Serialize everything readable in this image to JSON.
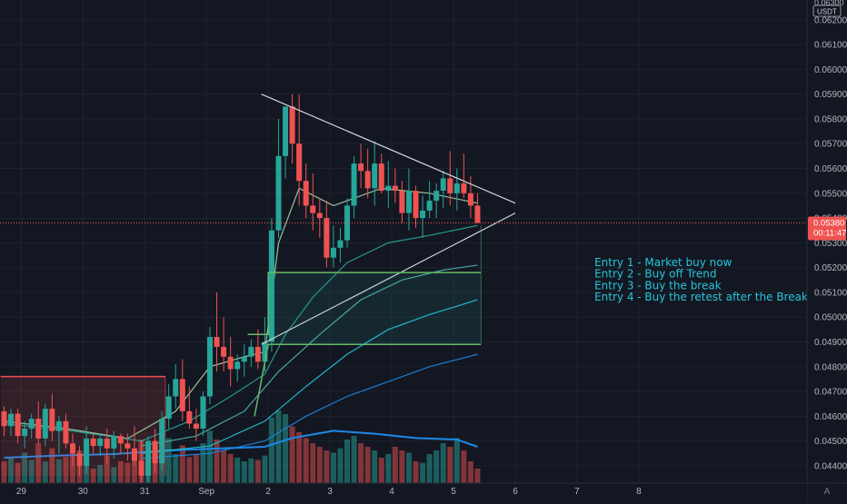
{
  "chart_data": {
    "type": "candlestick",
    "symbol": "",
    "quote_unit": "USDT",
    "price_scale": {
      "min": 0.0433,
      "max": 0.0628,
      "ticks": [
        0.062,
        0.061,
        0.06,
        0.059,
        0.058,
        0.057,
        0.056,
        0.055,
        0.054,
        0.053,
        0.052,
        0.051,
        0.05,
        0.049,
        0.048,
        0.047,
        0.046,
        0.045,
        0.044
      ],
      "tick_labels": [
        "0.06200",
        "0.06100",
        "0.06000",
        "0.05900",
        "0.05800",
        "0.05700",
        "0.05600",
        "0.05500",
        "0.05400",
        "0.05300",
        "0.05200",
        "0.05100",
        "0.05000",
        "0.04900",
        "0.04800",
        "0.04700",
        "0.04600",
        "0.04500",
        "0.04400"
      ],
      "top_partial_label": "0.06300"
    },
    "current_price": {
      "value": 0.0538,
      "label": "0.05380",
      "countdown": "00:11:47"
    },
    "time_axis": {
      "labels": [
        "29",
        "30",
        "31",
        "Sep",
        "2",
        "3",
        "4",
        "5",
        "6",
        "7",
        "8"
      ],
      "label_index": [
        2.5,
        11.5,
        20.5,
        29.5,
        38.5,
        47.5,
        56.5,
        65.5,
        74.5,
        83.5,
        92.5
      ]
    },
    "candles": [
      [
        0.0462,
        0.0464,
        0.0452,
        0.0456
      ],
      [
        0.0456,
        0.0463,
        0.0452,
        0.0461
      ],
      [
        0.0461,
        0.0463,
        0.0449,
        0.0452
      ],
      [
        0.0452,
        0.0458,
        0.0447,
        0.0455
      ],
      [
        0.0455,
        0.0461,
        0.0451,
        0.0459
      ],
      [
        0.0459,
        0.0466,
        0.0449,
        0.0451
      ],
      [
        0.0451,
        0.0465,
        0.0448,
        0.0463
      ],
      [
        0.0463,
        0.0469,
        0.045,
        0.0454
      ],
      [
        0.0454,
        0.046,
        0.0445,
        0.0458
      ],
      [
        0.0458,
        0.0461,
        0.0447,
        0.0449
      ],
      [
        0.0449,
        0.0453,
        0.044,
        0.0445
      ],
      [
        0.0445,
        0.0448,
        0.0436,
        0.044
      ],
      [
        0.044,
        0.0456,
        0.0437,
        0.0451
      ],
      [
        0.0451,
        0.0453,
        0.0445,
        0.0448
      ],
      [
        0.0448,
        0.0452,
        0.0444,
        0.0451
      ],
      [
        0.0451,
        0.0455,
        0.0441,
        0.0447
      ],
      [
        0.0447,
        0.0454,
        0.0443,
        0.0452
      ],
      [
        0.0452,
        0.0453,
        0.0445,
        0.0449
      ],
      [
        0.0449,
        0.0453,
        0.0442,
        0.0447
      ],
      [
        0.0447,
        0.0456,
        0.044,
        0.0442
      ],
      [
        0.0442,
        0.045,
        0.0432,
        0.0436
      ],
      [
        0.0436,
        0.0452,
        0.0433,
        0.045
      ],
      [
        0.045,
        0.0455,
        0.0437,
        0.0441
      ],
      [
        0.0441,
        0.0462,
        0.0438,
        0.0459
      ],
      [
        0.0459,
        0.0473,
        0.0455,
        0.0468
      ],
      [
        0.0468,
        0.0481,
        0.0463,
        0.0475
      ],
      [
        0.0475,
        0.0483,
        0.0458,
        0.0462
      ],
      [
        0.0462,
        0.0472,
        0.0455,
        0.0457
      ],
      [
        0.0457,
        0.0463,
        0.045,
        0.0455
      ],
      [
        0.0455,
        0.047,
        0.0452,
        0.0468
      ],
      [
        0.0468,
        0.0496,
        0.0465,
        0.0492
      ],
      [
        0.0492,
        0.051,
        0.0478,
        0.0488
      ],
      [
        0.0488,
        0.05,
        0.0478,
        0.0484
      ],
      [
        0.0484,
        0.0492,
        0.0472,
        0.0479
      ],
      [
        0.0479,
        0.0485,
        0.0474,
        0.0482
      ],
      [
        0.0482,
        0.0489,
        0.0476,
        0.0484
      ],
      [
        0.0484,
        0.0491,
        0.048,
        0.0488
      ],
      [
        0.0488,
        0.0495,
        0.0479,
        0.0482
      ],
      [
        0.0482,
        0.05,
        0.0478,
        0.049
      ],
      [
        0.049,
        0.054,
        0.0486,
        0.0535
      ],
      [
        0.0535,
        0.058,
        0.0532,
        0.0565
      ],
      [
        0.0565,
        0.0585,
        0.0556,
        0.0585
      ],
      [
        0.0585,
        0.059,
        0.0562,
        0.057
      ],
      [
        0.057,
        0.059,
        0.0545,
        0.0555
      ],
      [
        0.0555,
        0.0562,
        0.054,
        0.0545
      ],
      [
        0.0545,
        0.0558,
        0.0535,
        0.0542
      ],
      [
        0.0542,
        0.0548,
        0.0532,
        0.054
      ],
      [
        0.054,
        0.0547,
        0.052,
        0.0524
      ],
      [
        0.0524,
        0.0537,
        0.052,
        0.0528
      ],
      [
        0.0528,
        0.0536,
        0.0522,
        0.0531
      ],
      [
        0.0531,
        0.0548,
        0.0528,
        0.0545
      ],
      [
        0.0545,
        0.0565,
        0.054,
        0.0562
      ],
      [
        0.0562,
        0.057,
        0.0552,
        0.0559
      ],
      [
        0.0559,
        0.0568,
        0.0548,
        0.0552
      ],
      [
        0.0552,
        0.0571,
        0.0545,
        0.0562
      ],
      [
        0.0562,
        0.0566,
        0.055,
        0.0551
      ],
      [
        0.0551,
        0.0563,
        0.0544,
        0.0553
      ],
      [
        0.0553,
        0.056,
        0.0546,
        0.0551
      ],
      [
        0.0551,
        0.0555,
        0.0538,
        0.0542
      ],
      [
        0.0542,
        0.056,
        0.0535,
        0.0551
      ],
      [
        0.0551,
        0.0553,
        0.0536,
        0.054
      ],
      [
        0.054,
        0.0549,
        0.0532,
        0.0543
      ],
      [
        0.0543,
        0.0555,
        0.054,
        0.0547
      ],
      [
        0.0547,
        0.0554,
        0.054,
        0.0551
      ],
      [
        0.0551,
        0.0559,
        0.0544,
        0.0556
      ],
      [
        0.0556,
        0.0567,
        0.0545,
        0.055
      ],
      [
        0.055,
        0.056,
        0.0543,
        0.0554
      ],
      [
        0.0554,
        0.0566,
        0.0548,
        0.055
      ],
      [
        0.055,
        0.0557,
        0.054,
        0.0545
      ],
      [
        0.0545,
        0.055,
        0.0538,
        0.0538
      ]
    ],
    "volume": [
      {
        "x": 0,
        "h": 0.3
      },
      {
        "x": 1,
        "h": 0.35
      },
      {
        "x": 2,
        "h": 0.28
      },
      {
        "x": 3,
        "h": 0.42
      },
      {
        "x": 4,
        "h": 0.32
      },
      {
        "x": 5,
        "h": 0.55
      },
      {
        "x": 6,
        "h": 0.3
      },
      {
        "x": 7,
        "h": 0.48
      },
      {
        "x": 8,
        "h": 0.33
      },
      {
        "x": 9,
        "h": 0.36
      },
      {
        "x": 10,
        "h": 0.5
      },
      {
        "x": 11,
        "h": 0.45
      },
      {
        "x": 12,
        "h": 0.4
      },
      {
        "x": 13,
        "h": 0.2
      },
      {
        "x": 14,
        "h": 0.25
      },
      {
        "x": 15,
        "h": 0.38
      },
      {
        "x": 16,
        "h": 0.22
      },
      {
        "x": 17,
        "h": 0.3
      },
      {
        "x": 18,
        "h": 0.28
      },
      {
        "x": 19,
        "h": 0.42
      },
      {
        "x": 20,
        "h": 0.6
      },
      {
        "x": 21,
        "h": 0.35
      },
      {
        "x": 22,
        "h": 0.45
      },
      {
        "x": 23,
        "h": 0.5
      },
      {
        "x": 24,
        "h": 0.62
      },
      {
        "x": 25,
        "h": 0.4
      },
      {
        "x": 26,
        "h": 0.52
      },
      {
        "x": 27,
        "h": 0.36
      },
      {
        "x": 28,
        "h": 0.4
      },
      {
        "x": 29,
        "h": 0.55
      },
      {
        "x": 30,
        "h": 0.72
      },
      {
        "x": 31,
        "h": 0.6
      },
      {
        "x": 32,
        "h": 0.45
      },
      {
        "x": 33,
        "h": 0.4
      },
      {
        "x": 34,
        "h": 0.35
      },
      {
        "x": 35,
        "h": 0.3
      },
      {
        "x": 36,
        "h": 0.34
      },
      {
        "x": 37,
        "h": 0.32
      },
      {
        "x": 38,
        "h": 0.38
      },
      {
        "x": 39,
        "h": 0.9
      },
      {
        "x": 40,
        "h": 1.0
      },
      {
        "x": 41,
        "h": 0.95
      },
      {
        "x": 42,
        "h": 0.78
      },
      {
        "x": 43,
        "h": 0.7
      },
      {
        "x": 44,
        "h": 0.62
      },
      {
        "x": 45,
        "h": 0.55
      },
      {
        "x": 46,
        "h": 0.5
      },
      {
        "x": 47,
        "h": 0.45
      },
      {
        "x": 48,
        "h": 0.42
      },
      {
        "x": 49,
        "h": 0.48
      },
      {
        "x": 50,
        "h": 0.6
      },
      {
        "x": 51,
        "h": 0.65
      },
      {
        "x": 52,
        "h": 0.55
      },
      {
        "x": 53,
        "h": 0.5
      },
      {
        "x": 54,
        "h": 0.45
      },
      {
        "x": 55,
        "h": 0.35
      },
      {
        "x": 56,
        "h": 0.4
      },
      {
        "x": 57,
        "h": 0.5
      },
      {
        "x": 58,
        "h": 0.45
      },
      {
        "x": 59,
        "h": 0.42
      },
      {
        "x": 60,
        "h": 0.3
      },
      {
        "x": 61,
        "h": 0.28
      },
      {
        "x": 62,
        "h": 0.4
      },
      {
        "x": 63,
        "h": 0.45
      },
      {
        "x": 64,
        "h": 0.55
      },
      {
        "x": 65,
        "h": 0.5
      },
      {
        "x": 66,
        "h": 0.62
      },
      {
        "x": 67,
        "h": 0.45
      },
      {
        "x": 68,
        "h": 0.3
      },
      {
        "x": 69,
        "h": 0.2
      }
    ],
    "moving_averages": [
      {
        "name": "",
        "color": "#a5d6a7",
        "points": [
          [
            0,
            0.0458
          ],
          [
            9,
            0.0455
          ],
          [
            18,
            0.0451
          ],
          [
            25,
            0.0462
          ],
          [
            30,
            0.048
          ],
          [
            35,
            0.0484
          ],
          [
            38,
            0.0486
          ],
          [
            40,
            0.053
          ],
          [
            43,
            0.0552
          ],
          [
            48,
            0.0545
          ],
          [
            55,
            0.0552
          ],
          [
            62,
            0.055
          ],
          [
            69,
            0.0546
          ]
        ]
      },
      {
        "name": "",
        "color": "#26a69a",
        "points": [
          [
            0,
            0.0457
          ],
          [
            10,
            0.0454
          ],
          [
            20,
            0.045
          ],
          [
            27,
            0.0458
          ],
          [
            33,
            0.0468
          ],
          [
            38,
            0.0477
          ],
          [
            41,
            0.0493
          ],
          [
            45,
            0.0508
          ],
          [
            50,
            0.0522
          ],
          [
            56,
            0.053
          ],
          [
            62,
            0.0533
          ],
          [
            69,
            0.0537
          ]
        ]
      },
      {
        "name": "",
        "color": "#4db6ac",
        "points": [
          [
            20,
            0.0448
          ],
          [
            28,
            0.0452
          ],
          [
            35,
            0.0462
          ],
          [
            40,
            0.0478
          ],
          [
            46,
            0.0493
          ],
          [
            52,
            0.0507
          ],
          [
            58,
            0.0515
          ],
          [
            64,
            0.0519
          ],
          [
            69,
            0.0521
          ]
        ]
      },
      {
        "name": "",
        "color": "#26c6da",
        "points": [
          [
            20,
            0.0445
          ],
          [
            30,
            0.0448
          ],
          [
            38,
            0.0458
          ],
          [
            44,
            0.0472
          ],
          [
            50,
            0.0485
          ],
          [
            56,
            0.0495
          ],
          [
            62,
            0.0501
          ],
          [
            69,
            0.0507
          ]
        ]
      },
      {
        "name": "",
        "color": "#1e88e5",
        "points": [
          [
            20,
            0.0443
          ],
          [
            30,
            0.0445
          ],
          [
            38,
            0.045
          ],
          [
            44,
            0.046
          ],
          [
            50,
            0.0468
          ],
          [
            56,
            0.0474
          ],
          [
            62,
            0.048
          ],
          [
            69,
            0.0485
          ]
        ]
      }
    ],
    "volume_ma": {
      "color": "#1e88e5",
      "points": [
        [
          0,
          0.35
        ],
        [
          8,
          0.38
        ],
        [
          16,
          0.4
        ],
        [
          24,
          0.45
        ],
        [
          32,
          0.48
        ],
        [
          38,
          0.5
        ],
        [
          42,
          0.62
        ],
        [
          48,
          0.72
        ],
        [
          54,
          0.68
        ],
        [
          60,
          0.62
        ],
        [
          66,
          0.6
        ],
        [
          69,
          0.5
        ]
      ]
    },
    "drawings": {
      "triangle_upper": [
        [
          37.5,
          0.059
        ],
        [
          74.5,
          0.0546
        ]
      ],
      "triangle_lower": [
        [
          37.5,
          0.0489
        ],
        [
          74.5,
          0.0542
        ]
      ],
      "entry_level_upper": {
        "from": 38.5,
        "to": 69.5,
        "price": 0.0518,
        "color": "#66bb6a"
      },
      "entry_level_lower": {
        "from": 38.5,
        "to": 69.5,
        "price": 0.0489,
        "color": "#66bb6a"
      },
      "resistance_box": {
        "from": -0.5,
        "to": 23.5,
        "top": 0.0476,
        "bottom": 0.0436,
        "color": "#ef5350"
      }
    },
    "annotations": [
      {
        "id": "entry-1",
        "text": "Entry 1 - Market buy now",
        "anchor_x": 72,
        "price": 0.0522
      },
      {
        "id": "entry-2",
        "text": "Entry 2 - Buy off Trend",
        "anchor_x": 72,
        "price": 0.05174
      },
      {
        "id": "entry-3",
        "text": "Entry 3 - Buy the break",
        "anchor_x": 72,
        "price": 0.05128
      },
      {
        "id": "entry-4",
        "text": "Entry 4 - Buy the retest after the Break",
        "anchor_x": 72,
        "price": 0.05082
      }
    ],
    "annotation_color": "#26c6da",
    "up_color": "#26a69a",
    "down_color": "#ef5350",
    "grid": true,
    "watermark": "A"
  }
}
